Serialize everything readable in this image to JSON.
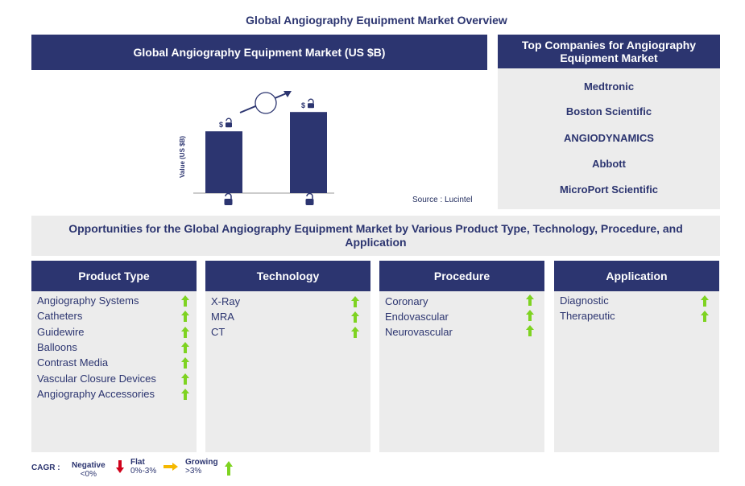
{
  "page_title": "Global Angiography Equipment Market Overview",
  "market_chart": {
    "header": "Global Angiography Equipment Market (US $B)",
    "ylabel": "Value (US $B)",
    "bar_value_label": "$",
    "source": "Source : Lucintel"
  },
  "chart_data": {
    "type": "bar",
    "categories": [
      "",
      ""
    ],
    "values": [
      0.64,
      0.84
    ],
    "ylabel": "Value (US $B)",
    "note": "Values locked; bars shown as relative heights"
  },
  "companies": {
    "header": "Top Companies for Angiography Equipment Market",
    "items": [
      "Medtronic",
      "Boston Scientific",
      "ANGIODYNAMICS",
      "Abbott",
      "MicroPort Scientific"
    ]
  },
  "opportunities": {
    "banner": "Opportunities for the Global Angiography Equipment Market by Various Product Type, Technology, Procedure, and Application",
    "columns": [
      {
        "title": "Product Type",
        "items": [
          "Angiography Systems",
          "Catheters",
          "Guidewire",
          "Balloons",
          "Contrast Media",
          "Vascular Closure Devices",
          "Angiography Accessories"
        ]
      },
      {
        "title": "Technology",
        "items": [
          "X-Ray",
          "MRA",
          "CT"
        ]
      },
      {
        "title": "Procedure",
        "items": [
          "Coronary",
          "Endovascular",
          "Neurovascular"
        ]
      },
      {
        "title": "Application",
        "items": [
          "Diagnostic",
          "Therapeutic"
        ]
      }
    ]
  },
  "legend": {
    "label": "CAGR :",
    "negative": {
      "name": "Negative",
      "range": "<0%",
      "color": "#d0021b"
    },
    "flat": {
      "name": "Flat",
      "range": "0%-3%",
      "color": "#f5b800"
    },
    "growing": {
      "name": "Growing",
      "range": ">3%",
      "color": "#7ed321"
    }
  }
}
